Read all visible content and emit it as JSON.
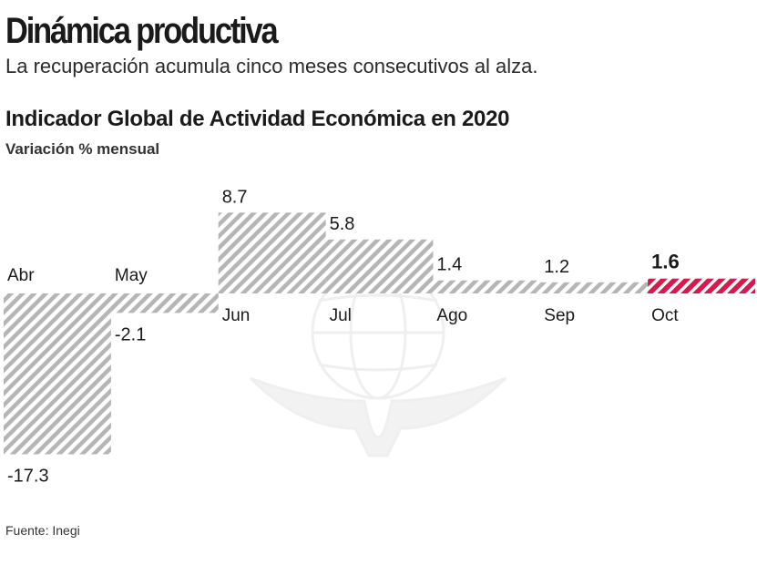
{
  "header": {
    "headline": "Dinámica productiva",
    "subhead": "La recuperación acumula cinco meses consecutivos al alza."
  },
  "chart_data": {
    "type": "bar",
    "title": "Indicador Global de Actividad Económica en 2020",
    "ylabel": "Variación % mensual",
    "categories": [
      "Abr",
      "May",
      "Jun",
      "Jul",
      "Ago",
      "Sep",
      "Oct"
    ],
    "values": [
      -17.3,
      -2.1,
      8.7,
      5.8,
      1.4,
      1.2,
      1.6
    ],
    "value_labels": [
      "-17.3",
      "-2.1",
      "8.7",
      "5.8",
      "1.4",
      "1.2",
      "1.6"
    ],
    "highlight_index": 6,
    "xlabel": ""
  },
  "colors": {
    "bar": "#b5b5b5",
    "bar_highlight": "#d7194b",
    "text": "#1a1a1a"
  },
  "footer": {
    "source": "Fuente: Inegi"
  }
}
